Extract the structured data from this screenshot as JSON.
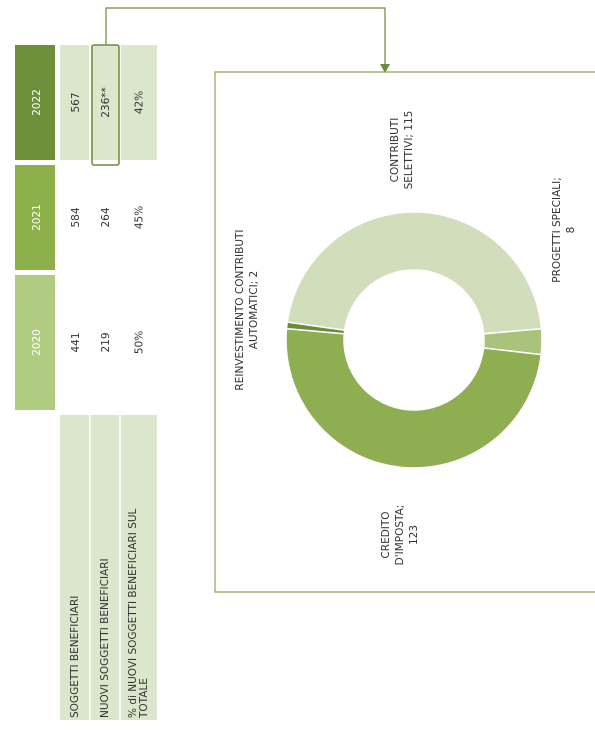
{
  "table": {
    "columns": [
      "2020",
      "2021",
      "2022"
    ],
    "rows": [
      {
        "label": [
          "SOGGETTI BENEFICIARI"
        ],
        "values": [
          "441",
          "584",
          "567"
        ]
      },
      {
        "label": [
          "NUOVI SOGGETTI BENEFICIARI"
        ],
        "values": [
          "219",
          "264",
          "236**"
        ]
      },
      {
        "label": [
          "% di NUOVI SOGGETTI BENEFICIARI SUL",
          "TOTALE"
        ],
        "values": [
          "50%",
          "45%",
          "42%"
        ]
      }
    ]
  },
  "chart_data": {
    "type": "donut",
    "values": [
      115,
      8,
      123,
      2
    ],
    "value_labels": [
      [
        "CONTRIBUTI",
        "SELETTIVI; 115"
      ],
      [
        "PROGETTI SPECIALI;",
        "8"
      ],
      [
        "CREDITO",
        "D'IMPOSTA;",
        "123"
      ],
      [
        "REINVESTIMENTO CONTRIBUTI",
        "AUTOMATICI; 2"
      ]
    ],
    "colors": [
      "#d2ddbb",
      "#a9c47a",
      "#8fae52",
      "#6b8a3a"
    ]
  }
}
